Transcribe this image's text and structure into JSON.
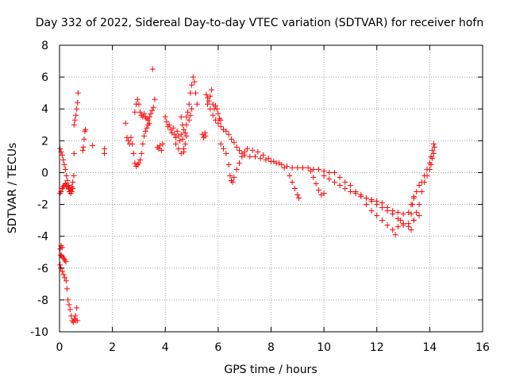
{
  "chart_data": {
    "type": "scatter",
    "title": "Day 332 of 2022, Sidereal Day-to-day VTEC variation (SDTVAR) for receiver hofn",
    "xlabel": "GPS time / hours",
    "ylabel": "SDTVAR / TECUs",
    "xlim": [
      0,
      16
    ],
    "ylim": [
      -10,
      8
    ],
    "grid": true,
    "marker": "+",
    "color": "#ff0000",
    "x_ticks": [
      "0",
      "2",
      "4",
      "6",
      "8",
      "10",
      "12",
      "14",
      "16"
    ],
    "y_ticks": [
      "-10",
      "-8",
      "-6",
      "-4",
      "-2",
      "0",
      "2",
      "4",
      "6",
      "8"
    ],
    "series": [
      {
        "name": "SDTVAR",
        "points": [
          [
            0.02,
            1.5
          ],
          [
            0.06,
            1.3
          ],
          [
            0.1,
            1.1
          ],
          [
            0.14,
            0.8
          ],
          [
            0.18,
            0.5
          ],
          [
            0.22,
            0.2
          ],
          [
            0.26,
            -0.2
          ],
          [
            0.3,
            -0.5
          ],
          [
            0.34,
            -0.8
          ],
          [
            0.38,
            -1.0
          ],
          [
            0.42,
            -1.1
          ],
          [
            0.46,
            -0.9
          ],
          [
            0.5,
            -0.6
          ],
          [
            0.54,
            -0.2
          ],
          [
            0.02,
            -1.3
          ],
          [
            0.06,
            -1.2
          ],
          [
            0.1,
            -1.0
          ],
          [
            0.14,
            -0.9
          ],
          [
            0.18,
            -0.8
          ],
          [
            0.22,
            -0.7
          ],
          [
            0.26,
            -0.8
          ],
          [
            0.3,
            -0.9
          ],
          [
            0.34,
            -1.0
          ],
          [
            0.38,
            -1.2
          ],
          [
            0.42,
            -1.3
          ],
          [
            0.46,
            -1.2
          ],
          [
            0.5,
            -1.0
          ],
          [
            0.55,
            1.2
          ],
          [
            0.55,
            3.0
          ],
          [
            0.58,
            3.3
          ],
          [
            0.62,
            3.6
          ],
          [
            0.65,
            4.0
          ],
          [
            0.68,
            4.4
          ],
          [
            0.7,
            5.0
          ],
          [
            0.88,
            1.4
          ],
          [
            0.9,
            1.6
          ],
          [
            0.93,
            2.1
          ],
          [
            0.96,
            2.6
          ],
          [
            0.98,
            2.7
          ],
          [
            1.25,
            1.7
          ],
          [
            1.7,
            1.5
          ],
          [
            1.7,
            1.2
          ],
          [
            0.02,
            -4.8
          ],
          [
            0.06,
            -4.6
          ],
          [
            0.1,
            -4.7
          ],
          [
            0.04,
            -5.2
          ],
          [
            0.08,
            -5.2
          ],
          [
            0.12,
            -5.3
          ],
          [
            0.16,
            -5.4
          ],
          [
            0.2,
            -5.5
          ],
          [
            0.24,
            -5.6
          ],
          [
            0.02,
            -5.8
          ],
          [
            0.05,
            -6.0
          ],
          [
            0.1,
            -6.2
          ],
          [
            0.15,
            -6.4
          ],
          [
            0.2,
            -6.6
          ],
          [
            0.25,
            -6.8
          ],
          [
            0.28,
            -7.3
          ],
          [
            0.32,
            -8.0
          ],
          [
            0.36,
            -8.3
          ],
          [
            0.4,
            -8.6
          ],
          [
            0.44,
            -9.0
          ],
          [
            0.48,
            -9.3
          ],
          [
            0.52,
            -9.4
          ],
          [
            0.56,
            -9.2
          ],
          [
            0.6,
            -9.0
          ],
          [
            0.65,
            -8.5
          ],
          [
            0.62,
            -9.3
          ],
          [
            0.68,
            -9.3
          ],
          [
            2.5,
            3.1
          ],
          [
            2.55,
            2.2
          ],
          [
            2.6,
            2.0
          ],
          [
            2.65,
            1.8
          ],
          [
            2.7,
            2.2
          ],
          [
            2.75,
            1.8
          ],
          [
            2.8,
            1.2
          ],
          [
            2.85,
            0.6
          ],
          [
            2.9,
            0.4
          ],
          [
            2.95,
            0.5
          ],
          [
            3.0,
            0.6
          ],
          [
            3.05,
            0.8
          ],
          [
            2.85,
            3.8
          ],
          [
            2.9,
            4.3
          ],
          [
            2.95,
            4.6
          ],
          [
            3.0,
            4.3
          ],
          [
            3.05,
            3.8
          ],
          [
            3.1,
            3.6
          ],
          [
            3.15,
            3.5
          ],
          [
            3.2,
            3.7
          ],
          [
            3.25,
            3.5
          ],
          [
            3.3,
            3.4
          ],
          [
            3.35,
            3.3
          ],
          [
            3.4,
            3.5
          ],
          [
            3.45,
            3.7
          ],
          [
            3.5,
            3.9
          ],
          [
            3.55,
            4.1
          ],
          [
            3.6,
            4.6
          ],
          [
            3.1,
            1.2
          ],
          [
            3.15,
            1.8
          ],
          [
            3.2,
            2.3
          ],
          [
            3.25,
            2.6
          ],
          [
            3.3,
            2.8
          ],
          [
            3.35,
            3.0
          ],
          [
            3.4,
            3.1
          ],
          [
            3.52,
            6.5
          ],
          [
            3.7,
            1.6
          ],
          [
            3.75,
            1.5
          ],
          [
            3.8,
            1.7
          ],
          [
            3.85,
            1.4
          ],
          [
            3.9,
            1.8
          ],
          [
            4.0,
            3.5
          ],
          [
            4.05,
            3.2
          ],
          [
            4.1,
            2.9
          ],
          [
            4.15,
            3.0
          ],
          [
            4.2,
            2.7
          ],
          [
            4.25,
            2.5
          ],
          [
            4.3,
            2.8
          ],
          [
            4.35,
            2.4
          ],
          [
            4.4,
            2.2
          ],
          [
            4.45,
            2.6
          ],
          [
            4.5,
            2.3
          ],
          [
            4.55,
            2.0
          ],
          [
            4.6,
            2.4
          ],
          [
            4.65,
            2.1
          ],
          [
            4.7,
            1.5
          ],
          [
            4.75,
            1.8
          ],
          [
            4.8,
            2.3
          ],
          [
            4.6,
            3.5
          ],
          [
            4.65,
            3.0
          ],
          [
            4.7,
            2.7
          ],
          [
            4.75,
            2.5
          ],
          [
            4.8,
            3.0
          ],
          [
            4.4,
            1.8
          ],
          [
            4.5,
            1.5
          ],
          [
            4.6,
            1.2
          ],
          [
            4.7,
            1.3
          ],
          [
            4.9,
            4.3
          ],
          [
            4.95,
            5.0
          ],
          [
            5.0,
            5.5
          ],
          [
            5.05,
            6.0
          ],
          [
            5.1,
            5.7
          ],
          [
            5.15,
            5.0
          ],
          [
            5.2,
            4.3
          ],
          [
            4.9,
            3.3
          ],
          [
            4.95,
            3.6
          ],
          [
            5.0,
            4.0
          ],
          [
            4.85,
            3.8
          ],
          [
            4.8,
            3.5
          ],
          [
            5.4,
            2.4
          ],
          [
            5.45,
            2.2
          ],
          [
            5.5,
            2.5
          ],
          [
            5.52,
            2.3
          ],
          [
            5.55,
            4.9
          ],
          [
            5.6,
            4.7
          ],
          [
            5.65,
            4.5
          ],
          [
            5.7,
            4.8
          ],
          [
            5.75,
            5.2
          ],
          [
            5.8,
            4.3
          ],
          [
            5.85,
            4.0
          ],
          [
            5.9,
            4.2
          ],
          [
            5.95,
            4.0
          ],
          [
            6.0,
            3.7
          ],
          [
            6.05,
            3.4
          ],
          [
            6.1,
            3.3
          ],
          [
            5.6,
            4.3
          ],
          [
            5.7,
            4.0
          ],
          [
            5.8,
            3.6
          ],
          [
            5.9,
            3.3
          ],
          [
            6.0,
            3.1
          ],
          [
            6.1,
            2.9
          ],
          [
            6.2,
            2.7
          ],
          [
            6.3,
            2.6
          ],
          [
            6.4,
            2.4
          ],
          [
            6.5,
            2.1
          ],
          [
            6.6,
            1.9
          ],
          [
            6.7,
            1.6
          ],
          [
            6.8,
            1.4
          ],
          [
            6.9,
            1.2
          ],
          [
            7.0,
            1.1
          ],
          [
            7.2,
            1.0
          ],
          [
            7.4,
            1.0
          ],
          [
            7.6,
            0.9
          ],
          [
            7.8,
            0.8
          ],
          [
            8.0,
            0.7
          ],
          [
            8.2,
            0.6
          ],
          [
            8.4,
            0.5
          ],
          [
            8.6,
            0.4
          ],
          [
            8.8,
            0.3
          ],
          [
            9.0,
            0.3
          ],
          [
            9.2,
            0.3
          ],
          [
            9.4,
            0.3
          ],
          [
            9.6,
            0.2
          ],
          [
            9.8,
            0.2
          ],
          [
            10.0,
            0.1
          ],
          [
            10.2,
            0.0
          ],
          [
            10.4,
            0.0
          ],
          [
            10.6,
            -0.3
          ],
          [
            10.8,
            -0.6
          ],
          [
            11.0,
            -0.8
          ],
          [
            11.2,
            -1.2
          ],
          [
            11.4,
            -1.4
          ],
          [
            11.6,
            -1.6
          ],
          [
            11.8,
            -1.8
          ],
          [
            12.0,
            -2.0
          ],
          [
            12.2,
            -2.2
          ],
          [
            12.4,
            -2.4
          ],
          [
            12.6,
            -2.6
          ],
          [
            12.8,
            -2.9
          ],
          [
            13.0,
            -3.2
          ],
          [
            13.2,
            -3.4
          ],
          [
            6.1,
            1.8
          ],
          [
            6.2,
            1.5
          ],
          [
            6.3,
            1.2
          ],
          [
            6.4,
            0.5
          ],
          [
            6.45,
            -0.2
          ],
          [
            6.5,
            -0.5
          ],
          [
            6.55,
            -0.6
          ],
          [
            6.6,
            -0.3
          ],
          [
            6.7,
            0.2
          ],
          [
            6.8,
            0.6
          ],
          [
            6.9,
            1.0
          ],
          [
            7.0,
            1.3
          ],
          [
            7.1,
            1.5
          ],
          [
            7.3,
            1.4
          ],
          [
            7.5,
            1.3
          ],
          [
            7.7,
            1.1
          ],
          [
            7.9,
            0.9
          ],
          [
            8.1,
            0.7
          ],
          [
            8.3,
            0.6
          ],
          [
            8.5,
            0.3
          ],
          [
            8.7,
            -0.2
          ],
          [
            8.8,
            -0.6
          ],
          [
            8.9,
            -1.0
          ],
          [
            9.0,
            -1.4
          ],
          [
            9.05,
            -1.6
          ],
          [
            9.5,
            0.1
          ],
          [
            9.6,
            -0.3
          ],
          [
            9.7,
            -0.7
          ],
          [
            9.8,
            -1.1
          ],
          [
            9.9,
            -1.4
          ],
          [
            10.0,
            -1.3
          ],
          [
            10.0,
            -0.2
          ],
          [
            10.2,
            -0.4
          ],
          [
            10.4,
            -0.6
          ],
          [
            10.6,
            -0.8
          ],
          [
            10.8,
            -1.0
          ],
          [
            11.0,
            -1.2
          ],
          [
            11.2,
            -1.3
          ],
          [
            11.4,
            -1.5
          ],
          [
            11.6,
            -1.6
          ],
          [
            11.8,
            -1.7
          ],
          [
            12.0,
            -1.8
          ],
          [
            12.2,
            -1.9
          ],
          [
            12.4,
            -2.2
          ],
          [
            12.6,
            -2.4
          ],
          [
            12.8,
            -2.5
          ],
          [
            13.0,
            -2.6
          ],
          [
            13.2,
            -2.5
          ],
          [
            11.6,
            -2.0
          ],
          [
            11.8,
            -2.4
          ],
          [
            12.0,
            -2.7
          ],
          [
            12.2,
            -3.0
          ],
          [
            12.4,
            -3.3
          ],
          [
            12.6,
            -3.6
          ],
          [
            12.7,
            -3.9
          ],
          [
            12.8,
            -3.4
          ],
          [
            12.9,
            -3.0
          ],
          [
            13.0,
            -3.3
          ],
          [
            13.2,
            -3.2
          ],
          [
            13.4,
            -3.0
          ],
          [
            13.6,
            -2.7
          ],
          [
            13.3,
            -2.0
          ],
          [
            13.4,
            -1.6
          ],
          [
            13.5,
            -1.2
          ],
          [
            13.6,
            -0.8
          ],
          [
            13.7,
            -0.6
          ],
          [
            13.8,
            -0.2
          ],
          [
            13.9,
            0.2
          ],
          [
            14.0,
            0.6
          ],
          [
            14.05,
            1.0
          ],
          [
            14.1,
            1.4
          ],
          [
            14.15,
            1.8
          ],
          [
            13.3,
            -3.6
          ],
          [
            13.4,
            -3.0
          ],
          [
            13.5,
            -2.5
          ],
          [
            13.6,
            -2.0
          ],
          [
            13.7,
            -1.2
          ],
          [
            13.8,
            -0.6
          ],
          [
            13.9,
            -0.2
          ],
          [
            14.0,
            0.2
          ],
          [
            14.05,
            0.5
          ],
          [
            14.1,
            0.9
          ],
          [
            14.15,
            1.2
          ],
          [
            14.18,
            1.6
          ],
          [
            13.3,
            -2.6
          ],
          [
            13.35,
            -2.0
          ],
          [
            13.4,
            -1.5
          ]
        ]
      }
    ]
  }
}
